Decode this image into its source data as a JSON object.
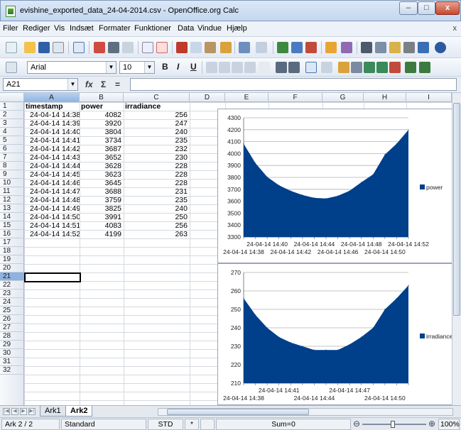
{
  "window": {
    "title": "evishine_exported_data_24-04-2014.csv - OpenOffice.org Calc",
    "controls": {
      "minimize": "–",
      "maximize": "□",
      "close": "x"
    }
  },
  "menu": {
    "items": [
      "Filer",
      "Rediger",
      "Vis",
      "Indsæt",
      "Formater",
      "Funktioner",
      "Data",
      "Vindue",
      "Hjælp"
    ],
    "close_doc": "x"
  },
  "format_bar": {
    "font_name": "Arial",
    "font_size": "10",
    "bold": "B",
    "italic": "I",
    "underline": "U"
  },
  "formula_bar": {
    "cell_ref": "A21",
    "fx": "fx",
    "sum": "Σ",
    "equals": "=",
    "value": ""
  },
  "columns": [
    "A",
    "B",
    "C",
    "D",
    "E",
    "F",
    "G",
    "H",
    "I"
  ],
  "rows": [
    "1",
    "2",
    "3",
    "4",
    "5",
    "6",
    "7",
    "8",
    "9",
    "10",
    "11",
    "12",
    "13",
    "14",
    "15",
    "16",
    "17",
    "18",
    "19",
    "20",
    "21",
    "22",
    "23",
    "24",
    "25",
    "26",
    "27",
    "28",
    "29",
    "30",
    "31",
    "32"
  ],
  "table": {
    "headers": [
      "timestamp",
      "power",
      "irradiance"
    ],
    "rows": [
      [
        "24-04-14 14:38",
        "4082",
        "256"
      ],
      [
        "24-04-14 14:39",
        "3920",
        "247"
      ],
      [
        "24-04-14 14:40",
        "3804",
        "240"
      ],
      [
        "24-04-14 14:41",
        "3734",
        "235"
      ],
      [
        "24-04-14 14:42",
        "3687",
        "232"
      ],
      [
        "24-04-14 14:43",
        "3652",
        "230"
      ],
      [
        "24-04-14 14:44",
        "3628",
        "228"
      ],
      [
        "24-04-14 14:45",
        "3623",
        "228"
      ],
      [
        "24-04-14 14:46",
        "3645",
        "228"
      ],
      [
        "24-04-14 14:47",
        "3688",
        "231"
      ],
      [
        "24-04-14 14:48",
        "3759",
        "235"
      ],
      [
        "24-04-14 14:49",
        "3825",
        "240"
      ],
      [
        "24-04-14 14:50",
        "3991",
        "250"
      ],
      [
        "24-04-14 14:51",
        "4083",
        "256"
      ],
      [
        "24-04-14 14:52",
        "4199",
        "263"
      ]
    ]
  },
  "chart_data": [
    {
      "type": "area",
      "x": [
        "24-04-14 14:38",
        "24-04-14 14:39",
        "24-04-14 14:40",
        "24-04-14 14:41",
        "24-04-14 14:42",
        "24-04-14 14:43",
        "24-04-14 14:44",
        "24-04-14 14:45",
        "24-04-14 14:46",
        "24-04-14 14:47",
        "24-04-14 14:48",
        "24-04-14 14:49",
        "24-04-14 14:50",
        "24-04-14 14:51",
        "24-04-14 14:52"
      ],
      "series": [
        {
          "name": "power",
          "values": [
            4082,
            3920,
            3804,
            3734,
            3687,
            3652,
            3628,
            3623,
            3645,
            3688,
            3759,
            3825,
            3991,
            4083,
            4199
          ]
        }
      ],
      "y_ticks": [
        "3300",
        "3400",
        "3500",
        "3600",
        "3700",
        "3800",
        "3900",
        "4000",
        "4100",
        "4200",
        "4300"
      ],
      "x_ticks_top": [
        "24-04-14 14:40",
        "24-04-14 14:44",
        "24-04-14 14:48",
        "24-04-14 14:52"
      ],
      "x_ticks_bottom": [
        "24-04-14 14:38",
        "24-04-14 14:42",
        "24-04-14 14:46",
        "24-04-14 14:50"
      ],
      "ylim": [
        3300,
        4300
      ],
      "color": "#003f8a",
      "legend": "right",
      "grid": true
    },
    {
      "type": "area",
      "x": [
        "24-04-14 14:38",
        "24-04-14 14:39",
        "24-04-14 14:40",
        "24-04-14 14:41",
        "24-04-14 14:42",
        "24-04-14 14:43",
        "24-04-14 14:44",
        "24-04-14 14:45",
        "24-04-14 14:46",
        "24-04-14 14:47",
        "24-04-14 14:48",
        "24-04-14 14:49",
        "24-04-14 14:50",
        "24-04-14 14:51",
        "24-04-14 14:52"
      ],
      "series": [
        {
          "name": "irradiance",
          "values": [
            256,
            247,
            240,
            235,
            232,
            230,
            228,
            228,
            228,
            231,
            235,
            240,
            250,
            256,
            263
          ]
        }
      ],
      "y_ticks": [
        "210",
        "220",
        "230",
        "240",
        "250",
        "260",
        "270"
      ],
      "x_ticks_top": [
        "24-04-14 14:41",
        "24-04-14 14:47"
      ],
      "x_ticks_bottom": [
        "24-04-14 14:38",
        "24-04-14 14:44",
        "24-04-14 14:50"
      ],
      "ylim": [
        210,
        270
      ],
      "color": "#003f8a",
      "legend": "right",
      "grid": true
    }
  ],
  "sheet_tabs": [
    "Ark1",
    "Ark2"
  ],
  "status": {
    "sheet": "Ark 2 / 2",
    "style": "Standard",
    "mode": "STD",
    "modified": "*",
    "sum": "Sum=0",
    "zoom": "100%",
    "zoom_minus": "⊖",
    "zoom_plus": "⊕"
  },
  "colors": {
    "chart_fill": "#003f8a",
    "selection": "#8fb2e0",
    "chrome": "#bcd1ea"
  }
}
